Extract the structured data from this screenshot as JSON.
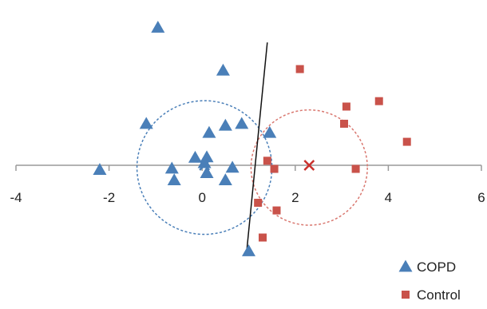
{
  "chart_data": {
    "type": "scatter",
    "xlim": [
      -4,
      6
    ],
    "ylim": [
      -2.2,
      3.2
    ],
    "x_ticks": [
      -4,
      -2,
      0,
      2,
      4,
      6
    ],
    "x_tick_labels": [
      "-4",
      "-2",
      "0",
      "2",
      "4",
      "6"
    ],
    "grid": false,
    "legend_position": "bottom-right",
    "series": [
      {
        "name": "COPD",
        "marker": "triangle",
        "color": "#4a7fb8",
        "points": [
          [
            -0.95,
            3.05
          ],
          [
            0.45,
            2.1
          ],
          [
            -1.2,
            0.92
          ],
          [
            0.15,
            0.72
          ],
          [
            0.5,
            0.88
          ],
          [
            0.85,
            0.92
          ],
          [
            1.45,
            0.72
          ],
          [
            -0.15,
            0.17
          ],
          [
            0.1,
            0.18
          ],
          [
            0.05,
            0.05
          ],
          [
            -2.2,
            -0.1
          ],
          [
            -0.65,
            -0.07
          ],
          [
            0.65,
            -0.05
          ],
          [
            0.1,
            -0.17
          ],
          [
            -0.6,
            -0.33
          ],
          [
            0.5,
            -0.33
          ],
          [
            1.0,
            -1.9
          ]
        ]
      },
      {
        "name": "Control",
        "marker": "square",
        "color": "#c9524a",
        "points": [
          [
            2.1,
            2.13
          ],
          [
            3.8,
            1.42
          ],
          [
            3.1,
            1.3
          ],
          [
            3.05,
            0.92
          ],
          [
            4.4,
            0.52
          ],
          [
            1.4,
            0.1
          ],
          [
            1.55,
            -0.08
          ],
          [
            3.3,
            -0.08
          ],
          [
            1.2,
            -0.83
          ],
          [
            1.6,
            -1.0
          ],
          [
            1.3,
            -1.6
          ]
        ]
      }
    ],
    "centroids": [
      {
        "series": "COPD",
        "x": 0.05,
        "y": 0.0,
        "marker": "x",
        "color": "#4a7fb8"
      },
      {
        "series": "Control",
        "x": 2.3,
        "y": 0.0,
        "marker": "x",
        "color": "#c9302c"
      }
    ],
    "circles": [
      {
        "series": "COPD",
        "cx": 0.05,
        "cy": -0.05,
        "r": 1.45,
        "color": "#4a7fb8"
      },
      {
        "series": "Control",
        "cx": 2.3,
        "cy": -0.05,
        "r": 1.25,
        "color": "#d9776f"
      }
    ],
    "separator_line": {
      "x1": 1.4,
      "y1": 2.72,
      "x2": 0.95,
      "y2": -1.98,
      "color": "#111111"
    }
  }
}
